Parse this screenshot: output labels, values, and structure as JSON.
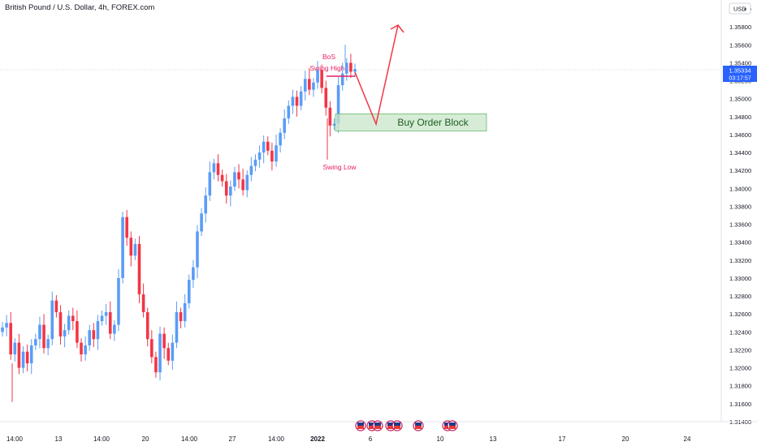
{
  "header": {
    "symbol_title": "British Pound / U.S. Dollar, 4h, FOREX.com"
  },
  "price_axis": {
    "currency": "USD",
    "last_price": "1.35334",
    "countdown": "03:17:57",
    "ticks": [
      "1.36000",
      "1.35800",
      "1.35600",
      "1.35400",
      "1.35200",
      "1.35000",
      "1.34800",
      "1.34600",
      "1.34400",
      "1.34200",
      "1.34000",
      "1.33800",
      "1.33600",
      "1.33400",
      "1.33200",
      "1.33000",
      "1.32800",
      "1.32600",
      "1.32400",
      "1.32200",
      "1.32000",
      "1.31800",
      "1.31600",
      "1.31400"
    ]
  },
  "time_axis": {
    "labels": [
      "14:00",
      "13",
      "14:00",
      "20",
      "14:00",
      "27",
      "14:00",
      "2022",
      "6",
      "10",
      "13",
      "17",
      "20",
      "24"
    ]
  },
  "annotations": {
    "bos": "BoS",
    "swing_high": "Swing High",
    "swing_low": "Swing Low",
    "order_block": "Buy Order Block"
  },
  "colors": {
    "up": "#5b9cf6",
    "down": "#f23645",
    "annotation": "#e91e63",
    "order_block_fill": "#c8e6c9",
    "order_block_border": "#66bb6a",
    "order_block_text": "#1b5e20",
    "projection": "#f23645",
    "price_label_bg": "#2962ff"
  },
  "chart_data": {
    "type": "candlestick",
    "title": "British Pound / U.S. Dollar, 4h, FOREX.com",
    "ylim": [
      1.313,
      1.362
    ],
    "last_price": 1.35334,
    "candles_close": [
      1.3245,
      1.325,
      1.3215,
      1.3228,
      1.32,
      1.3218,
      1.3205,
      1.3225,
      1.3232,
      1.3248,
      1.3222,
      1.3232,
      1.3275,
      1.3262,
      1.3235,
      1.3242,
      1.3258,
      1.3252,
      1.3228,
      1.3215,
      1.3225,
      1.3242,
      1.3232,
      1.3252,
      1.3258,
      1.3262,
      1.3238,
      1.3248,
      1.33,
      1.3368,
      1.3345,
      1.3325,
      1.3338,
      1.3282,
      1.3262,
      1.3232,
      1.3212,
      1.3195,
      1.3238,
      1.3222,
      1.3208,
      1.3228,
      1.3262,
      1.3252,
      1.3272,
      1.3298,
      1.3312,
      1.3352,
      1.3372,
      1.3392,
      1.3418,
      1.3428,
      1.3415,
      1.3408,
      1.3392,
      1.3402,
      1.3418,
      1.341,
      1.3398,
      1.3415,
      1.3425,
      1.3432,
      1.344,
      1.3452,
      1.3442,
      1.343,
      1.3448,
      1.3462,
      1.3478,
      1.3492,
      1.3502,
      1.3492,
      1.3508,
      1.3522,
      1.351,
      1.3518,
      1.3532,
      1.3512,
      1.349,
      1.347,
      1.3472,
      1.3515,
      1.3528,
      1.354,
      1.353,
      1.3533
    ]
  }
}
